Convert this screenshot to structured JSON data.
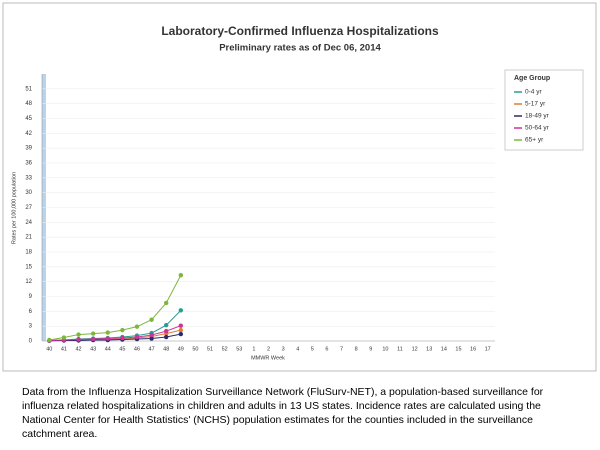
{
  "chart_data": {
    "type": "line",
    "title": "Laboratory-Confirmed Influenza Hospitalizations",
    "subtitle": "Preliminary rates as of Dec 06, 2014",
    "y_label": "Rates per 100,000 population",
    "x_label": "MMWR Week",
    "legend_title": "Age Group",
    "legend_position": "right",
    "grid": true,
    "categories": [
      "40",
      "41",
      "42",
      "43",
      "44",
      "45",
      "46",
      "47",
      "48",
      "49",
      "50",
      "51",
      "52",
      "53",
      "1",
      "2",
      "3",
      "4",
      "5",
      "6",
      "7",
      "8",
      "9",
      "10",
      "11",
      "12",
      "13",
      "14",
      "15",
      "16",
      "17"
    ],
    "ylim": [
      0,
      54
    ],
    "yticks": [
      0,
      3,
      6,
      9,
      12,
      15,
      18,
      21,
      24,
      27,
      30,
      33,
      36,
      39,
      42,
      45,
      48,
      51
    ],
    "series": [
      {
        "name": "0-4 yr",
        "color": "#2a9d8f",
        "values": [
          0.1,
          0.2,
          0.4,
          0.5,
          0.6,
          0.8,
          1.1,
          1.6,
          3.2,
          6.2,
          null,
          null,
          null,
          null,
          null,
          null,
          null,
          null,
          null,
          null,
          null,
          null,
          null,
          null,
          null,
          null,
          null,
          null,
          null,
          null,
          null
        ]
      },
      {
        "name": "5-17 yr",
        "color": "#e07b39",
        "values": [
          0.1,
          0.1,
          0.2,
          0.3,
          0.3,
          0.4,
          0.6,
          0.9,
          1.5,
          2.2,
          null,
          null,
          null,
          null,
          null,
          null,
          null,
          null,
          null,
          null,
          null,
          null,
          null,
          null,
          null,
          null,
          null,
          null,
          null,
          null,
          null
        ]
      },
      {
        "name": "18-49 yr",
        "color": "#2b2a6b",
        "values": [
          0.05,
          0.1,
          0.1,
          0.2,
          0.2,
          0.3,
          0.4,
          0.5,
          0.8,
          1.4,
          null,
          null,
          null,
          null,
          null,
          null,
          null,
          null,
          null,
          null,
          null,
          null,
          null,
          null,
          null,
          null,
          null,
          null,
          null,
          null,
          null
        ]
      },
      {
        "name": "50-64 yr",
        "color": "#cc3399",
        "values": [
          0.1,
          0.2,
          0.3,
          0.4,
          0.5,
          0.6,
          0.8,
          1.2,
          2.0,
          3.1,
          null,
          null,
          null,
          null,
          null,
          null,
          null,
          null,
          null,
          null,
          null,
          null,
          null,
          null,
          null,
          null,
          null,
          null,
          null,
          null,
          null
        ]
      },
      {
        "name": "65+ yr",
        "color": "#7ab83c",
        "values": [
          0.2,
          0.7,
          1.3,
          1.5,
          1.7,
          2.2,
          2.9,
          4.3,
          7.7,
          13.3,
          null,
          null,
          null,
          null,
          null,
          null,
          null,
          null,
          null,
          null,
          null,
          null,
          null,
          null,
          null,
          null,
          null,
          null,
          null,
          null,
          null
        ]
      }
    ]
  },
  "footer": "Data from the Influenza Hospitalization Surveillance Network (FluSurv-NET), a population-based surveillance for influenza related hospitalizations in children and adults in 13 US states. Incidence rates are calculated using the National Center for Health Statistics' (NCHS) population estimates for the counties included in the surveillance catchment area."
}
